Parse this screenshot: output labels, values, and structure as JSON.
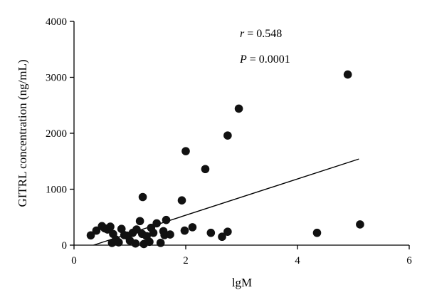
{
  "chart_data": {
    "type": "scatter",
    "xlabel": "lgM",
    "ylabel": "GITRL concentration (ng/mL)",
    "xlim": [
      0,
      6
    ],
    "ylim": [
      0,
      4000
    ],
    "x_ticks": [
      "0",
      "2",
      "4",
      "6"
    ],
    "y_ticks": [
      "0",
      "1000",
      "2000",
      "3000",
      "4000"
    ],
    "grid": false,
    "annotations": {
      "r_symbol": "r",
      "r_text": " = 0.548",
      "p_symbol": "P",
      "p_text": " = 0.0001"
    },
    "regression_line": {
      "x": [
        0.35,
        5.1
      ],
      "y": [
        0,
        1540
      ]
    },
    "points": [
      {
        "x": 0.3,
        "y": 175
      },
      {
        "x": 0.4,
        "y": 260
      },
      {
        "x": 0.5,
        "y": 340
      },
      {
        "x": 0.55,
        "y": 300
      },
      {
        "x": 0.6,
        "y": 280
      },
      {
        "x": 0.65,
        "y": 330
      },
      {
        "x": 0.7,
        "y": 200
      },
      {
        "x": 0.75,
        "y": 100
      },
      {
        "x": 0.68,
        "y": 40
      },
      {
        "x": 0.8,
        "y": 50
      },
      {
        "x": 0.85,
        "y": 290
      },
      {
        "x": 0.9,
        "y": 180
      },
      {
        "x": 0.95,
        "y": 170
      },
      {
        "x": 1.0,
        "y": 80
      },
      {
        "x": 1.05,
        "y": 220
      },
      {
        "x": 1.1,
        "y": 30
      },
      {
        "x": 1.12,
        "y": 280
      },
      {
        "x": 1.18,
        "y": 430
      },
      {
        "x": 1.22,
        "y": 200
      },
      {
        "x": 1.25,
        "y": 20
      },
      {
        "x": 1.3,
        "y": 160
      },
      {
        "x": 1.35,
        "y": 60
      },
      {
        "x": 1.38,
        "y": 310
      },
      {
        "x": 1.42,
        "y": 220
      },
      {
        "x": 1.48,
        "y": 390
      },
      {
        "x": 1.55,
        "y": 40
      },
      {
        "x": 1.6,
        "y": 250
      },
      {
        "x": 1.62,
        "y": 180
      },
      {
        "x": 1.65,
        "y": 450
      },
      {
        "x": 1.72,
        "y": 190
      },
      {
        "x": 1.23,
        "y": 860
      },
      {
        "x": 1.93,
        "y": 800
      },
      {
        "x": 1.98,
        "y": 260
      },
      {
        "x": 2.0,
        "y": 1680
      },
      {
        "x": 2.12,
        "y": 320
      },
      {
        "x": 2.35,
        "y": 1360
      },
      {
        "x": 2.45,
        "y": 220
      },
      {
        "x": 2.65,
        "y": 150
      },
      {
        "x": 2.75,
        "y": 1960
      },
      {
        "x": 2.75,
        "y": 240
      },
      {
        "x": 2.95,
        "y": 2440
      },
      {
        "x": 4.35,
        "y": 220
      },
      {
        "x": 4.9,
        "y": 3050
      },
      {
        "x": 5.12,
        "y": 370
      }
    ]
  }
}
